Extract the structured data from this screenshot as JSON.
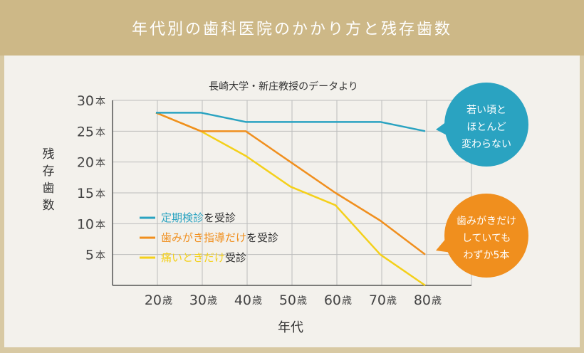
{
  "header": {
    "title": "年代別の歯科医院のかかり方と残存歯数"
  },
  "chart_data": {
    "type": "line",
    "subtitle": "長崎大学・新庄教授のデータより",
    "ylabel": "残存歯数",
    "xlabel": "年代",
    "y_unit": "本",
    "x_unit": "歳",
    "categories": [
      "20",
      "30",
      "40",
      "50",
      "60",
      "70",
      "80"
    ],
    "ylim": [
      0,
      30
    ],
    "yticks": [
      5,
      10,
      15,
      20,
      25,
      30
    ],
    "grid": true,
    "legend_position": "bottom-left",
    "series": [
      {
        "name": "定期検診を受診",
        "highlight": "定期検診",
        "rest": "を受診",
        "color": "#2aa3c1",
        "values": [
          28,
          28,
          26.5,
          26.5,
          26.5,
          26.5,
          25
        ]
      },
      {
        "name": "歯みがき指導だけを受診",
        "highlight": "歯みがき指導だけ",
        "rest": "を受診",
        "color": "#f08f1e",
        "values": [
          28,
          25,
          25,
          20,
          15,
          10.5,
          5
        ]
      },
      {
        "name": "痛いときだけ受診",
        "highlight": "痛いときだけ",
        "rest": "受診",
        "color": "#f4d01a",
        "values": [
          28,
          25,
          21,
          16,
          13,
          5,
          0
        ]
      }
    ],
    "callouts": [
      {
        "lines": [
          "若い頃と",
          "ほとんど",
          "変わらない"
        ],
        "color": "#2aa3c1"
      },
      {
        "lines": [
          "歯みがきだけ",
          "していても",
          "わずか5本"
        ],
        "color": "#f08f1e"
      }
    ]
  }
}
